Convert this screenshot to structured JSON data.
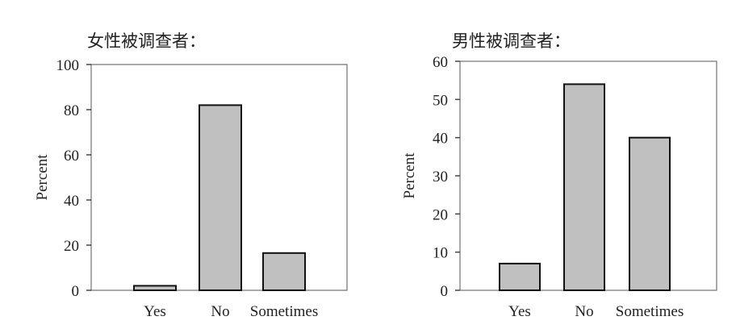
{
  "chart_data": [
    {
      "type": "bar",
      "title": "女性被调查者：",
      "ylabel": "Percent",
      "xlabel": "",
      "categories": [
        "Yes",
        "No",
        "Sometimes"
      ],
      "values": [
        2,
        82,
        16.5
      ],
      "ylim": [
        0,
        100
      ],
      "yticks": [
        0,
        20,
        40,
        60,
        80,
        100
      ],
      "bar_color": "#c0c0c0",
      "grid": false
    },
    {
      "type": "bar",
      "title": "男性被调查者：",
      "ylabel": "Percent",
      "xlabel": "",
      "categories": [
        "Yes",
        "No",
        "Sometimes"
      ],
      "values": [
        7,
        54,
        40
      ],
      "ylim": [
        0,
        60
      ],
      "yticks": [
        0,
        10,
        20,
        30,
        40,
        50,
        60
      ],
      "bar_color": "#c0c0c0",
      "grid": false
    }
  ]
}
